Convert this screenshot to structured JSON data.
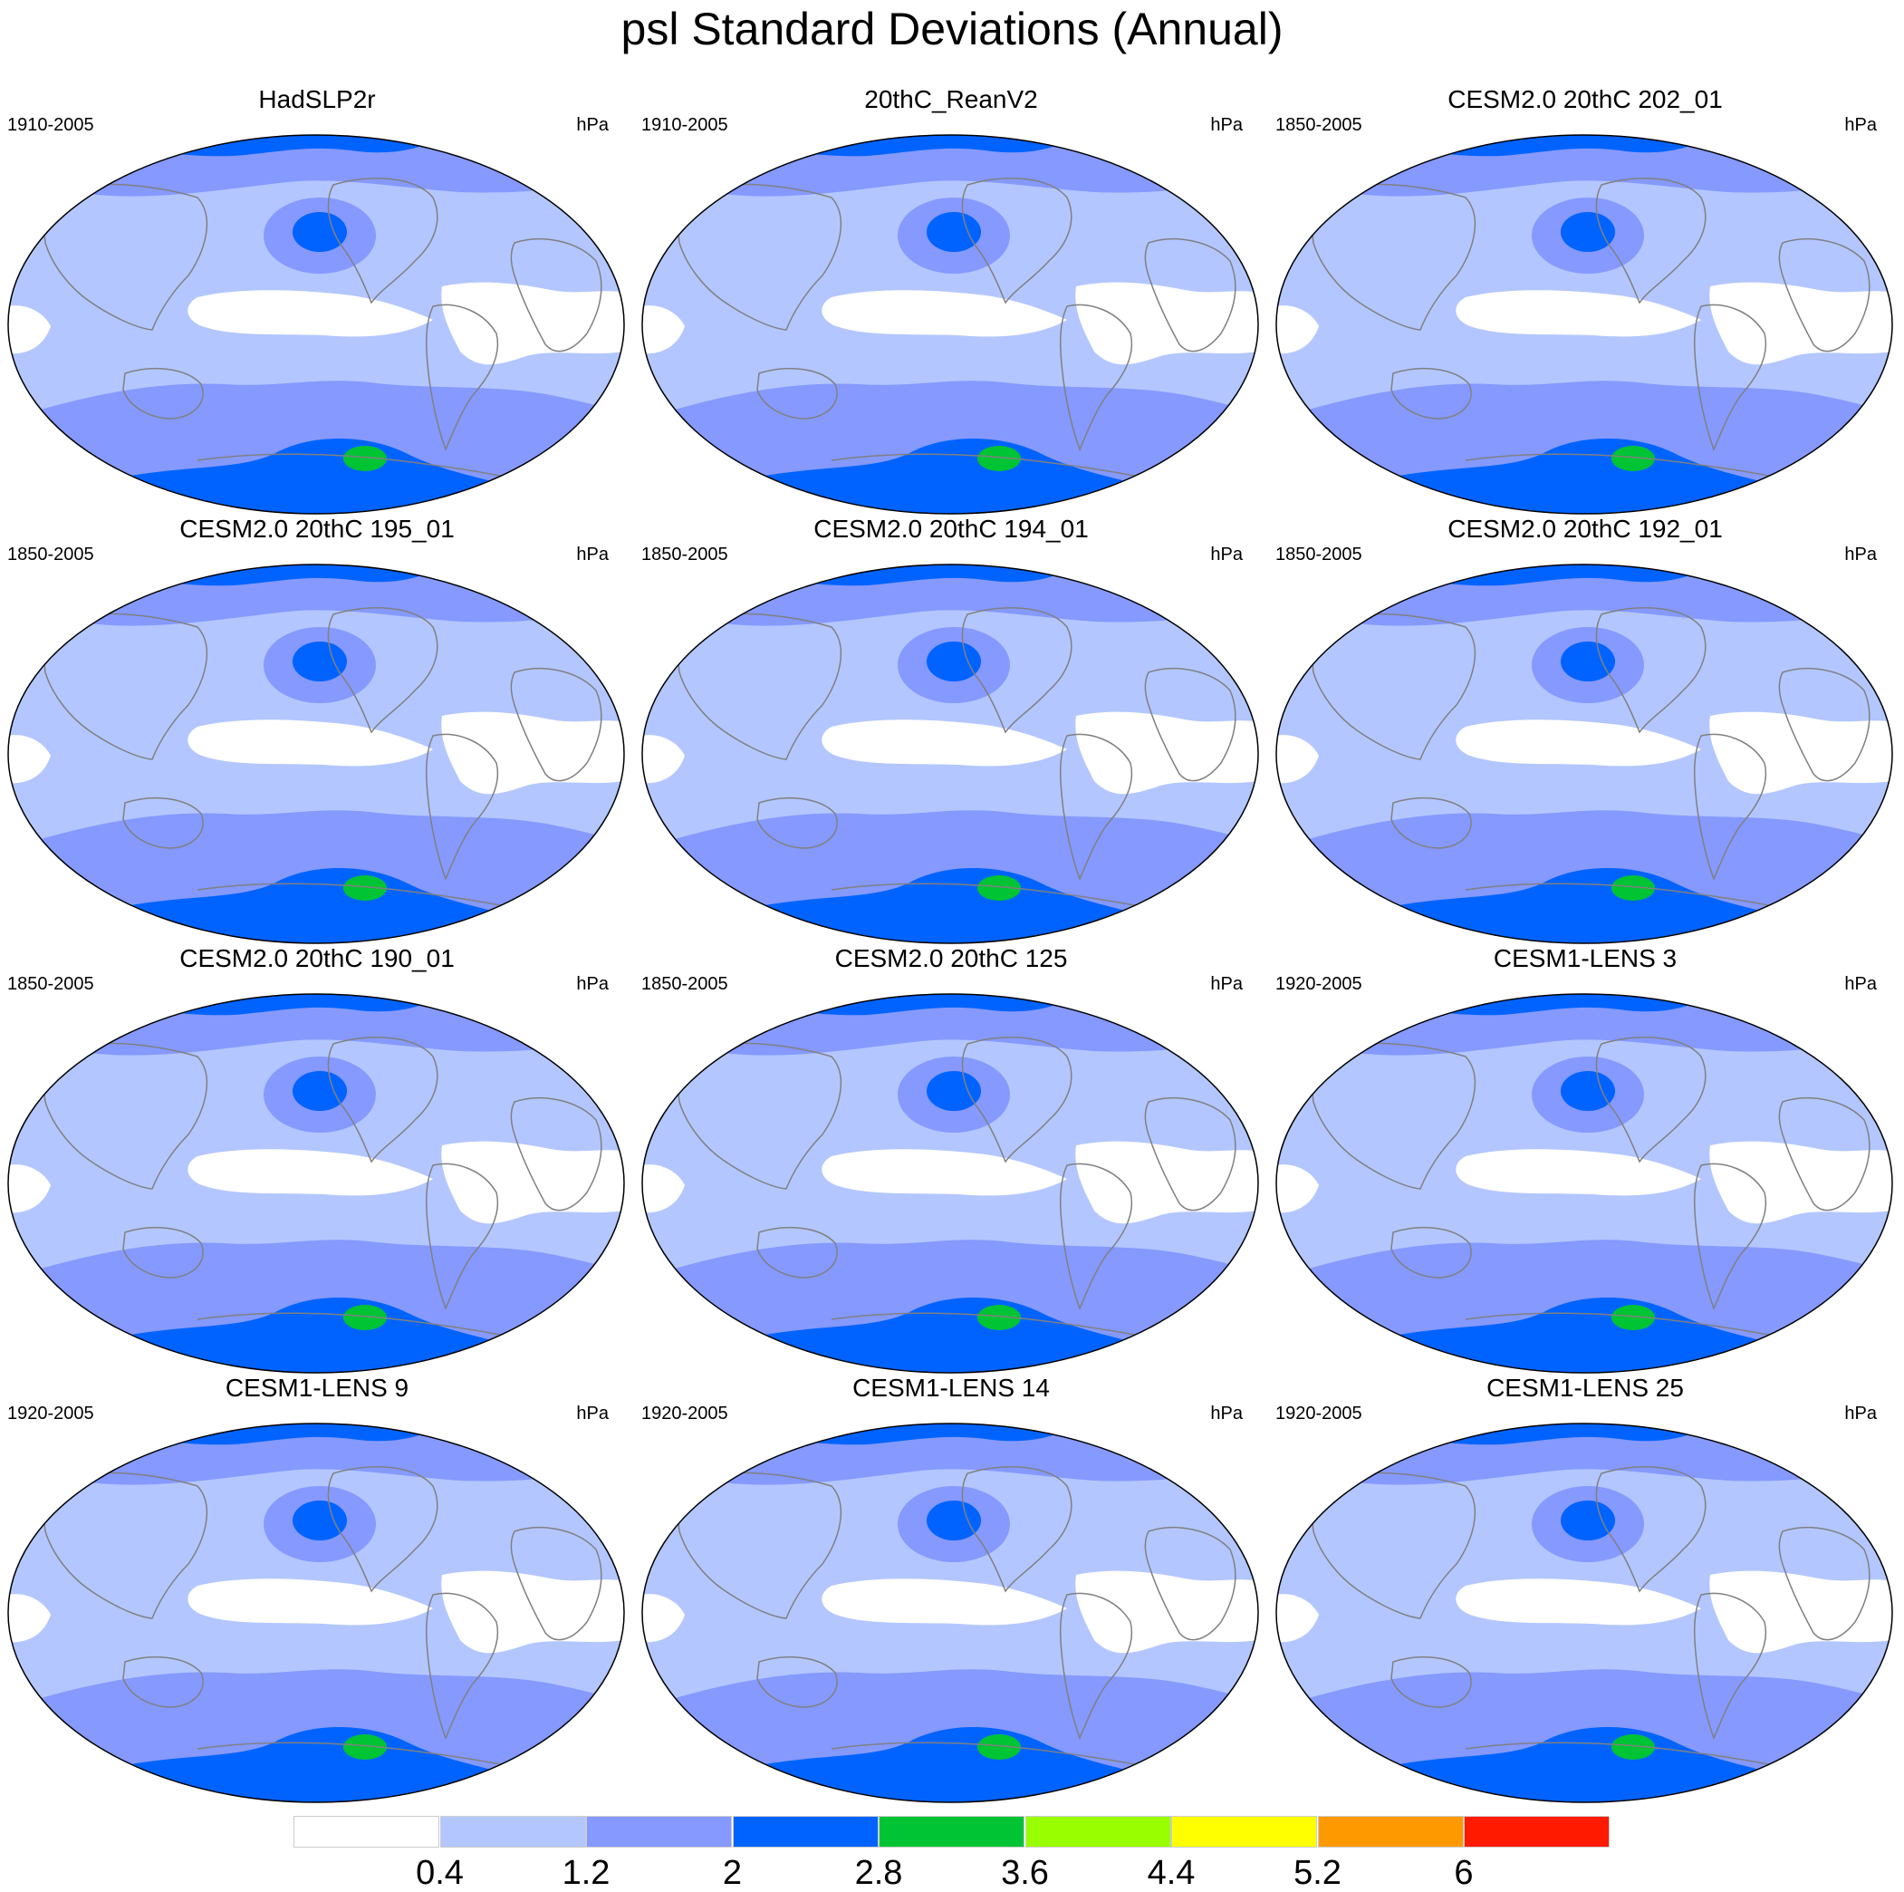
{
  "title": "psl Standard Deviations (Annual)",
  "unit": "hPa",
  "colors": {
    "level0": "#ffffff",
    "level1": "#b3c6ff",
    "level2": "#8599ff",
    "level3": "#0063ff",
    "level4": "#00c434",
    "coast": "#808080"
  },
  "panels": [
    {
      "title": "HadSLP2r",
      "period": "1910-2005"
    },
    {
      "title": "20thC_ReanV2",
      "period": "1910-2005"
    },
    {
      "title": "CESM2.0 20thC 202_01",
      "period": "1850-2005"
    },
    {
      "title": "CESM2.0 20thC 195_01",
      "period": "1850-2005"
    },
    {
      "title": "CESM2.0 20thC 194_01",
      "period": "1850-2005"
    },
    {
      "title": "CESM2.0 20thC 192_01",
      "period": "1850-2005"
    },
    {
      "title": "CESM2.0 20thC 190_01",
      "period": "1850-2005"
    },
    {
      "title": "CESM2.0 20thC 125",
      "period": "1850-2005"
    },
    {
      "title": "CESM1-LENS 3",
      "period": "1920-2005"
    },
    {
      "title": "CESM1-LENS 9",
      "period": "1920-2005"
    },
    {
      "title": "CESM1-LENS 14",
      "period": "1920-2005"
    },
    {
      "title": "CESM1-LENS 25",
      "period": "1920-2005"
    }
  ],
  "colorbar": {
    "labels": [
      "0.4",
      "1.2",
      "2",
      "2.8",
      "3.6",
      "4.4",
      "5.2",
      "6"
    ],
    "colors": [
      "#ffffff",
      "#b3c6ff",
      "#8599ff",
      "#0063ff",
      "#00c434",
      "#99ff00",
      "#ffff00",
      "#ff9900",
      "#ff1a00"
    ]
  }
}
